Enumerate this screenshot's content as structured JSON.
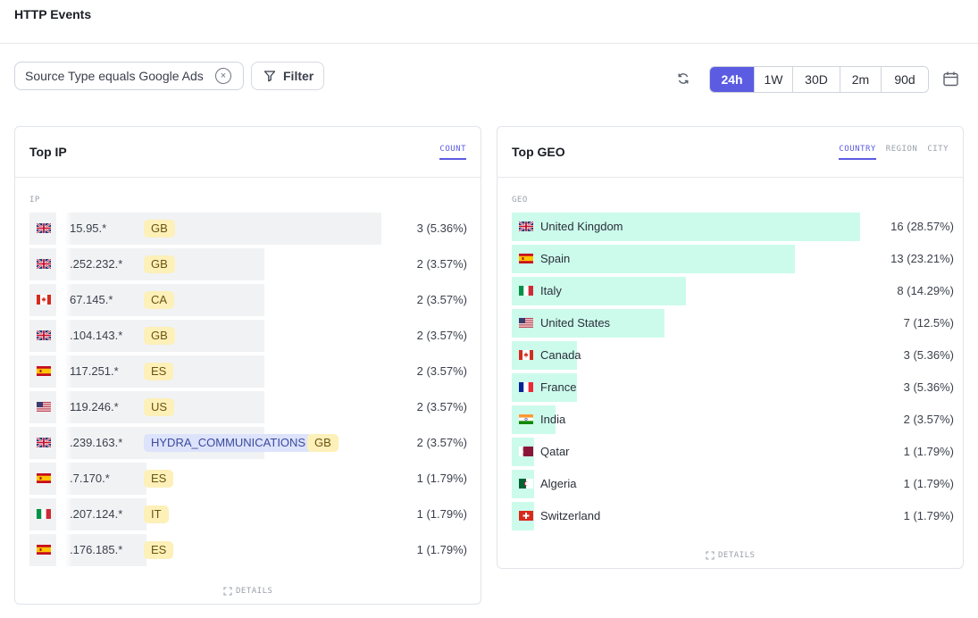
{
  "page": {
    "title": "HTTP Events"
  },
  "filter_chip": {
    "label": "Source Type equals Google Ads",
    "remove_label": "×"
  },
  "filter_button": {
    "label": "Filter"
  },
  "time_ranges": [
    {
      "label": "24h",
      "active": true
    },
    {
      "label": "1W",
      "active": false
    },
    {
      "label": "30D",
      "active": false
    },
    {
      "label": "2m",
      "active": false
    },
    {
      "label": "90d",
      "active": false
    }
  ],
  "top_ip": {
    "title": "Top IP",
    "tabs": [
      {
        "label": "COUNT",
        "active": true
      }
    ],
    "column_label": "IP",
    "details_label": "DETAILS",
    "rows": [
      {
        "flag": "gb",
        "ip": "15.95.*",
        "isp": "",
        "country": "GB",
        "count": "3 (5.36%)",
        "fraction": 1.0
      },
      {
        "flag": "gb",
        "ip": ".252.232.*",
        "isp": "",
        "country": "GB",
        "count": "2 (3.57%)",
        "fraction": 0.667
      },
      {
        "flag": "ca",
        "ip": "67.145.*",
        "isp": "",
        "country": "CA",
        "count": "2 (3.57%)",
        "fraction": 0.667
      },
      {
        "flag": "gb",
        "ip": ".104.143.*",
        "isp": "",
        "country": "GB",
        "count": "2 (3.57%)",
        "fraction": 0.667
      },
      {
        "flag": "es",
        "ip": "117.251.*",
        "isp": "",
        "country": "ES",
        "count": "2 (3.57%)",
        "fraction": 0.667
      },
      {
        "flag": "us",
        "ip": "119.246.*",
        "isp": "",
        "country": "US",
        "count": "2 (3.57%)",
        "fraction": 0.667
      },
      {
        "flag": "gb",
        "ip": ".239.163.*",
        "isp": "HYDRA_COMMUNICATIONS",
        "country": "GB",
        "count": "2 (3.57%)",
        "fraction": 0.667
      },
      {
        "flag": "es",
        "ip": ".7.170.*",
        "isp": "",
        "country": "ES",
        "count": "1  (1.79%)",
        "fraction": 0.333
      },
      {
        "flag": "it",
        "ip": ".207.124.*",
        "isp": "",
        "country": "IT",
        "count": "1  (1.79%)",
        "fraction": 0.333
      },
      {
        "flag": "es",
        "ip": ".176.185.*",
        "isp": "",
        "country": "ES",
        "count": "1  (1.79%)",
        "fraction": 0.333
      }
    ]
  },
  "top_geo": {
    "title": "Top GEO",
    "tabs": [
      {
        "label": "COUNTRY",
        "active": true
      },
      {
        "label": "REGION",
        "active": false
      },
      {
        "label": "CITY",
        "active": false
      }
    ],
    "column_label": "GEO",
    "details_label": "DETAILS",
    "rows": [
      {
        "flag": "gb",
        "name": "United Kingdom",
        "count": "16 (28.57%)",
        "fraction": 1.0
      },
      {
        "flag": "es",
        "name": "Spain",
        "count": "13 (23.21%)",
        "fraction": 0.8125
      },
      {
        "flag": "it",
        "name": "Italy",
        "count": "8 (14.29%)",
        "fraction": 0.5
      },
      {
        "flag": "us",
        "name": "United States",
        "count": "7  (12.5%)",
        "fraction": 0.4375
      },
      {
        "flag": "ca",
        "name": "Canada",
        "count": "3 (5.36%)",
        "fraction": 0.1875
      },
      {
        "flag": "fr",
        "name": "France",
        "count": "3 (5.36%)",
        "fraction": 0.1875
      },
      {
        "flag": "in",
        "name": "India",
        "count": "2 (3.57%)",
        "fraction": 0.125
      },
      {
        "flag": "qa",
        "name": "Qatar",
        "count": "1  (1.79%)",
        "fraction": 0.0625
      },
      {
        "flag": "dz",
        "name": "Algeria",
        "count": "1  (1.79%)",
        "fraction": 0.0625
      },
      {
        "flag": "ch",
        "name": "Switzerland",
        "count": "1  (1.79%)",
        "fraction": 0.0625
      }
    ]
  },
  "colors": {
    "accent": "#5b5ce2",
    "geo_bar": "#ccfbec",
    "ip_bar": "#f1f2f4"
  }
}
